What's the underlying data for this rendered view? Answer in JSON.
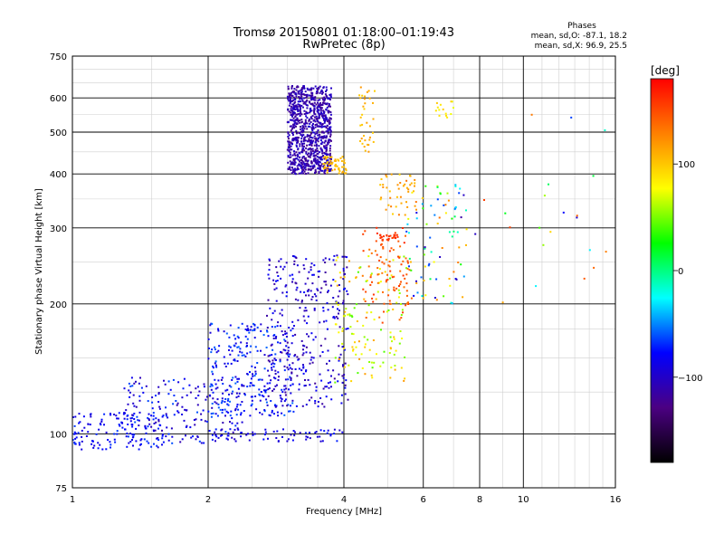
{
  "figure": {
    "title_line1": "Tromsø 20150801 01:18:00–01:19:43",
    "title_line2": "RwPretec (8p)",
    "stats_title": "Phases",
    "stats_o": "mean, sd,O:  -87.1, 18.2",
    "stats_x": "mean, sd,X:  96.9, 25.5"
  },
  "colorbar": {
    "label": "[deg]",
    "ticks": [
      {
        "label": "100",
        "value": 100
      },
      {
        "label": "0",
        "value": 0
      },
      {
        "label": "−100",
        "value": -100
      }
    ],
    "colors": [
      "#000000",
      "#4b0082",
      "#0000ff",
      "#00ffff",
      "#00ff00",
      "#ffff00",
      "#ff8000",
      "#ff0000"
    ]
  },
  "chart_data": {
    "type": "scatter",
    "title": "Tromsø 20150801 01:18:00–01:19:43",
    "subtitle": "RwPretec (8p)",
    "xlabel": "Frequency [MHz]",
    "ylabel": "Stationary phase Virtual Height [km]",
    "xscale": "log",
    "yscale": "log",
    "xlim": [
      1,
      16
    ],
    "ylim": [
      75,
      750
    ],
    "xticks": [
      1,
      2,
      4,
      6,
      8,
      10,
      16
    ],
    "xtick_labels": [
      "1",
      "2",
      "4",
      "6",
      "8",
      "10",
      "16"
    ],
    "yticks": [
      75,
      100,
      200,
      300,
      400,
      500,
      600,
      750
    ],
    "ytick_labels": [
      "75",
      "100",
      "200",
      "300",
      "400",
      "500",
      "600",
      "750"
    ],
    "grid": true,
    "colorbar_label": "[deg]",
    "color_range": [
      -180,
      180
    ],
    "clusters": [
      {
        "x_range": [
          3.0,
          3.75
        ],
        "y_range": [
          400,
          640
        ],
        "phase_range": [
          -125,
          -95
        ],
        "count": 950
      },
      {
        "x_range": [
          3.6,
          4.05
        ],
        "y_range": [
          400,
          440
        ],
        "phase_range": [
          95,
          115
        ],
        "count": 55
      },
      {
        "x_range": [
          4.3,
          4.7
        ],
        "y_range": [
          450,
          640
        ],
        "phase_range": [
          95,
          120
        ],
        "count": 35
      },
      {
        "x_range": [
          1.0,
          1.6
        ],
        "y_range": [
          92,
          112
        ],
        "phase_range": [
          -95,
          -65
        ],
        "count": 130
      },
      {
        "x_range": [
          1.3,
          2.4
        ],
        "y_range": [
          95,
          135
        ],
        "phase_range": [
          -110,
          -60
        ],
        "count": 200
      },
      {
        "x_range": [
          2.0,
          3.1
        ],
        "y_range": [
          110,
          180
        ],
        "phase_range": [
          -95,
          -55
        ],
        "count": 260
      },
      {
        "x_range": [
          2.7,
          4.1
        ],
        "y_range": [
          115,
          260
        ],
        "phase_range": [
          -120,
          -75
        ],
        "count": 330
      },
      {
        "x_range": [
          2.0,
          4.0
        ],
        "y_range": [
          96,
          103
        ],
        "phase_range": [
          -100,
          -70
        ],
        "count": 70
      },
      {
        "x_range": [
          3.8,
          5.5
        ],
        "y_range": [
          130,
          260
        ],
        "phase_range": [
          40,
          120
        ],
        "count": 130
      },
      {
        "x_range": [
          4.4,
          5.6
        ],
        "y_range": [
          180,
          300
        ],
        "phase_range": [
          130,
          165
        ],
        "count": 95
      },
      {
        "x_range": [
          4.8,
          5.8
        ],
        "y_range": [
          320,
          400
        ],
        "phase_range": [
          95,
          135
        ],
        "count": 45
      },
      {
        "x_range": [
          5.5,
          7.5
        ],
        "y_range": [
          200,
          380
        ],
        "phase_range": [
          -115,
          140
        ],
        "count": 90
      },
      {
        "x_range": [
          6.4,
          7.0
        ],
        "y_range": [
          540,
          590
        ],
        "phase_range": [
          70,
          100
        ],
        "count": 14
      },
      {
        "x_range": [
          4.8,
          5.3
        ],
        "y_range": [
          280,
          290
        ],
        "phase_range": [
          150,
          165
        ],
        "count": 22
      },
      {
        "x_range": [
          7.0,
          16.0
        ],
        "y_range": [
          180,
          560
        ],
        "phase_range": [
          -120,
          160
        ],
        "count": 22
      }
    ]
  }
}
